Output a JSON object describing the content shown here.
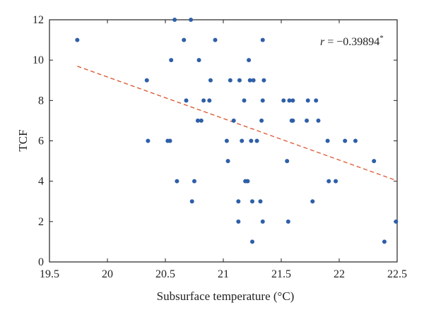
{
  "chart_data": {
    "type": "scatter",
    "xlabel": "Subsurface temperature (°C)",
    "ylabel": "TCF",
    "xlim": [
      19.5,
      22.5
    ],
    "ylim": [
      0,
      12
    ],
    "xticks": [
      "19.5",
      "20",
      "20.5",
      "21",
      "21.5",
      "22",
      "22.5"
    ],
    "yticks": [
      "0",
      "2",
      "4",
      "6",
      "8",
      "10",
      "12"
    ],
    "grid": false,
    "annotation": {
      "var": "r",
      "text": " = −0.39894",
      "sup": "*"
    },
    "point_color": "#2e5fa8",
    "trend_color": "#d9532b",
    "trendline": {
      "x": [
        19.74,
        22.5
      ],
      "y": [
        9.7,
        4.02
      ]
    },
    "points": [
      [
        19.74,
        11
      ],
      [
        20.34,
        9
      ],
      [
        20.35,
        6
      ],
      [
        20.52,
        6
      ],
      [
        20.54,
        6
      ],
      [
        20.55,
        10
      ],
      [
        20.58,
        12
      ],
      [
        20.6,
        4
      ],
      [
        20.66,
        11
      ],
      [
        20.68,
        8
      ],
      [
        20.72,
        12
      ],
      [
        20.73,
        3
      ],
      [
        20.75,
        4
      ],
      [
        20.78,
        7
      ],
      [
        20.79,
        10
      ],
      [
        20.81,
        7
      ],
      [
        20.83,
        8
      ],
      [
        20.88,
        8
      ],
      [
        20.89,
        9
      ],
      [
        20.93,
        11
      ],
      [
        21.03,
        6
      ],
      [
        21.04,
        5
      ],
      [
        21.06,
        9
      ],
      [
        21.09,
        7
      ],
      [
        21.13,
        3
      ],
      [
        21.13,
        2
      ],
      [
        21.14,
        9
      ],
      [
        21.16,
        6
      ],
      [
        21.18,
        8
      ],
      [
        21.19,
        4
      ],
      [
        21.21,
        4
      ],
      [
        21.22,
        10
      ],
      [
        21.23,
        9
      ],
      [
        21.24,
        6
      ],
      [
        21.25,
        3
      ],
      [
        21.25,
        1
      ],
      [
        21.26,
        9
      ],
      [
        21.29,
        6
      ],
      [
        21.32,
        3
      ],
      [
        21.33,
        7
      ],
      [
        21.34,
        2
      ],
      [
        21.34,
        8
      ],
      [
        21.34,
        11
      ],
      [
        21.35,
        9
      ],
      [
        21.52,
        8
      ],
      [
        21.55,
        5
      ],
      [
        21.56,
        2
      ],
      [
        21.57,
        8
      ],
      [
        21.59,
        7
      ],
      [
        21.6,
        8
      ],
      [
        21.6,
        7
      ],
      [
        21.72,
        7
      ],
      [
        21.73,
        8
      ],
      [
        21.77,
        3
      ],
      [
        21.8,
        8
      ],
      [
        21.82,
        7
      ],
      [
        21.9,
        6
      ],
      [
        21.91,
        4
      ],
      [
        21.97,
        4
      ],
      [
        22.05,
        6
      ],
      [
        22.14,
        6
      ],
      [
        22.3,
        5
      ],
      [
        22.39,
        1
      ],
      [
        22.49,
        2
      ]
    ]
  }
}
